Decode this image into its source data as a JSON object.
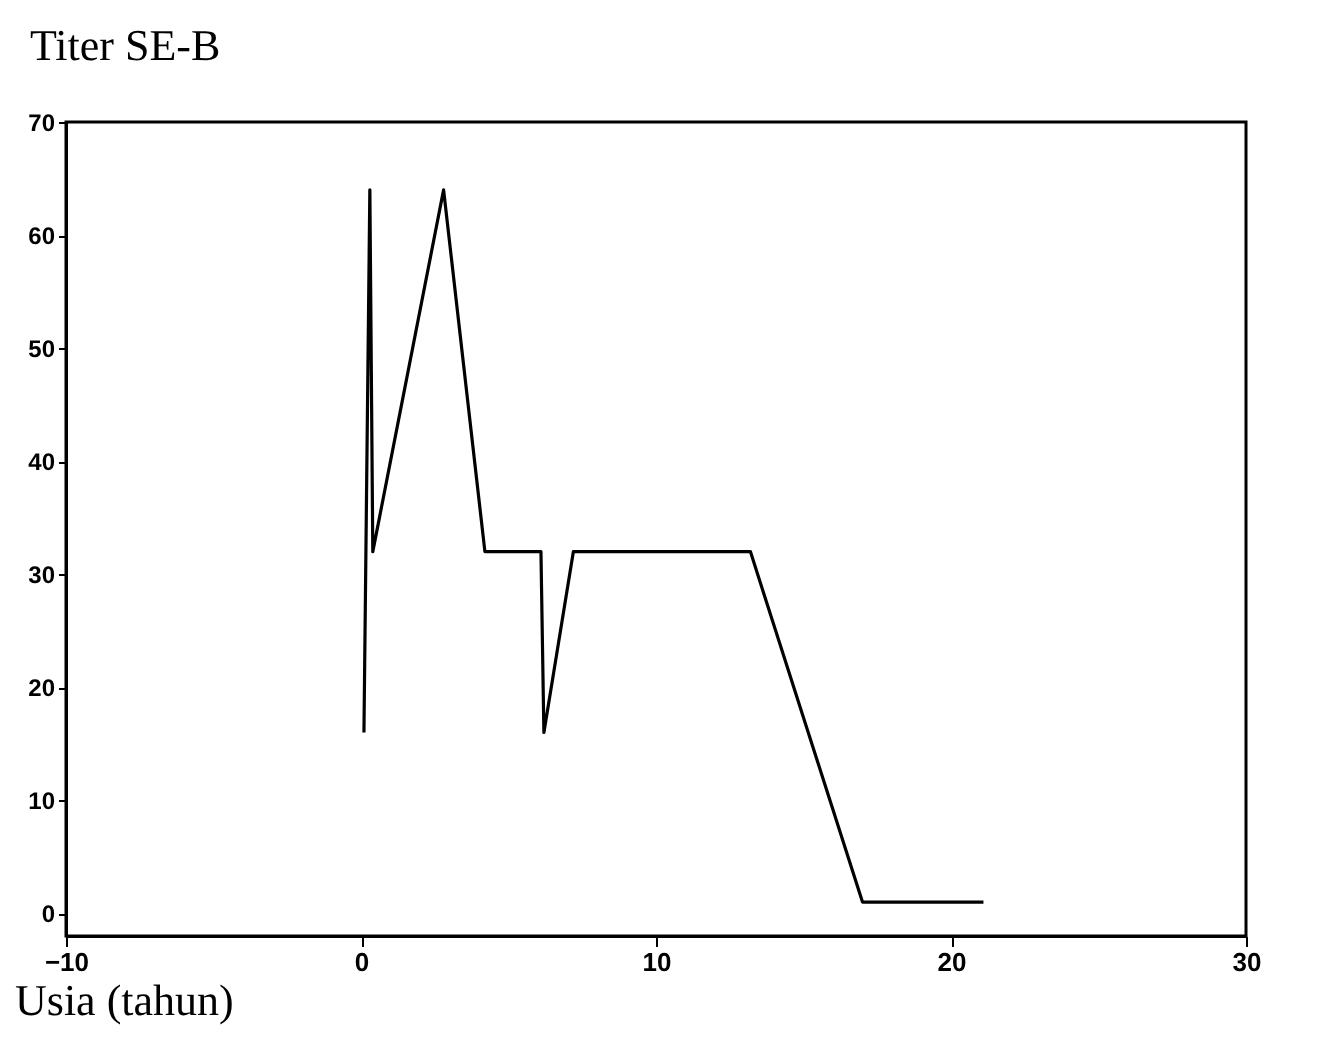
{
  "chart_data": {
    "type": "line",
    "title": "Titer SE-B",
    "xlabel": "Usia (tahun)",
    "x": [
      0.1,
      0.3,
      0.4,
      2.8,
      4.2,
      6.1,
      6.2,
      7.2,
      13.2,
      17.0,
      21.1
    ],
    "series": [
      {
        "color": "#000000",
        "values": [
          16,
          64,
          32,
          64,
          32,
          32,
          16,
          32,
          32,
          1,
          1
        ]
      }
    ],
    "xlim": [
      -10,
      30
    ],
    "xticks": [
      -10,
      0,
      10,
      20,
      30
    ],
    "ylim": [
      -2,
      70
    ],
    "yticks": [
      0,
      10,
      20,
      30,
      40,
      50,
      60,
      70
    ],
    "grid": false
  }
}
